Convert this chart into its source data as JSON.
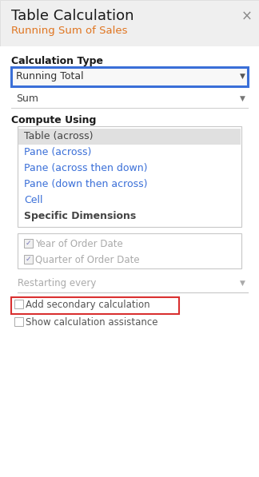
{
  "title": "Table Calculation",
  "subtitle": "Running Sum of Sales",
  "close_symbol": "×",
  "bg_color": "#f2f2f2",
  "header_bg": "#efefef",
  "content_bg": "#ffffff",
  "section1_label": "Calculation Type",
  "dropdown1_text": "Running Total",
  "dropdown1_border_color": "#3a6fd8",
  "dropdown1_bg": "#f8f8f8",
  "dropdown2_text": "Sum",
  "section2_label": "Compute Using",
  "list_border": "#c8c8c8",
  "list_selected_bg": "#e0e0e0",
  "list_items": [
    {
      "text": "Table (across)",
      "bold": false,
      "selected": true,
      "color": "#444444"
    },
    {
      "text": "Pane (across)",
      "bold": false,
      "selected": false,
      "color": "#3a6fd8"
    },
    {
      "text": "Pane (across then down)",
      "bold": false,
      "selected": false,
      "color": "#3a6fd8"
    },
    {
      "text": "Pane (down then across)",
      "bold": false,
      "selected": false,
      "color": "#3a6fd8"
    },
    {
      "text": "Cell",
      "bold": false,
      "selected": false,
      "color": "#3a6fd8"
    },
    {
      "text": "Specific Dimensions",
      "bold": true,
      "selected": false,
      "color": "#444444"
    }
  ],
  "checkbox_items": [
    {
      "text": "Year of Order Date",
      "checked": true
    },
    {
      "text": "Quarter of Order Date",
      "checked": true
    }
  ],
  "restart_label": "Restarting every",
  "bottom_items": [
    {
      "text": "Add secondary calculation",
      "checked": false,
      "highlight": true
    },
    {
      "text": "Show calculation assistance",
      "checked": false,
      "highlight": false
    }
  ]
}
